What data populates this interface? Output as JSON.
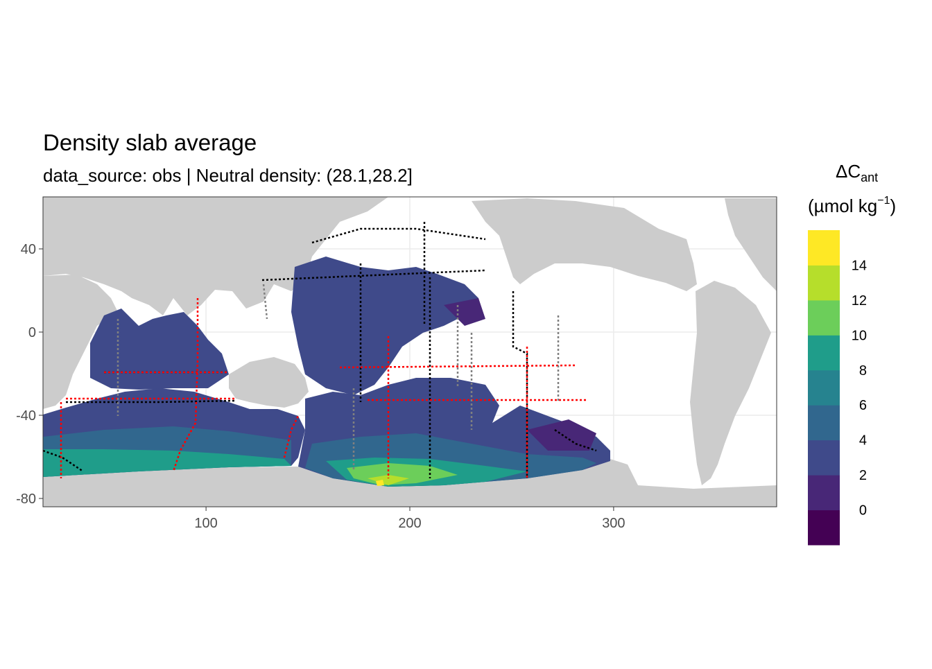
{
  "title": "Density slab average",
  "subtitle": "data_source: obs | Neutral density: (28.1,28.2]",
  "chart_data": {
    "type": "heatmap",
    "map": "global ocean, longitude vs latitude",
    "x_ticks": [
      {
        "label": "100",
        "value": 100
      },
      {
        "label": "200",
        "value": 200
      },
      {
        "label": "300",
        "value": 300
      }
    ],
    "y_ticks": [
      {
        "label": "40",
        "value": 40
      },
      {
        "label": "0",
        "value": 0
      },
      {
        "label": "-40",
        "value": -40
      },
      {
        "label": "-80",
        "value": -80
      }
    ],
    "xlim": [
      20,
      380
    ],
    "ylim": [
      -84,
      65
    ],
    "legend": {
      "title_main": "ΔC",
      "title_sub": "ant",
      "units_prefix": "(µmol kg",
      "units_sup": "−1",
      "units_suffix": ")",
      "bins": [
        {
          "range": "< 0",
          "color": "#440154"
        },
        {
          "range": "0-2",
          "color": "#482777"
        },
        {
          "range": "2-4",
          "color": "#3f4a8a"
        },
        {
          "range": "4-6",
          "color": "#31678e"
        },
        {
          "range": "6-8",
          "color": "#26838f"
        },
        {
          "range": "8-10",
          "color": "#1f9d8a"
        },
        {
          "range": "10-12",
          "color": "#6cce5a"
        },
        {
          "range": "12-14",
          "color": "#b6de2b"
        },
        {
          "range": "> 14",
          "color": "#fee825"
        }
      ],
      "labels": [
        "0",
        "2",
        "4",
        "6",
        "8",
        "10",
        "12",
        "14"
      ],
      "placement": "right"
    },
    "land_color": "#cccccc",
    "track_colors": {
      "observations": "#000000",
      "gridded": "#ff0000",
      "other": "#808080"
    }
  }
}
